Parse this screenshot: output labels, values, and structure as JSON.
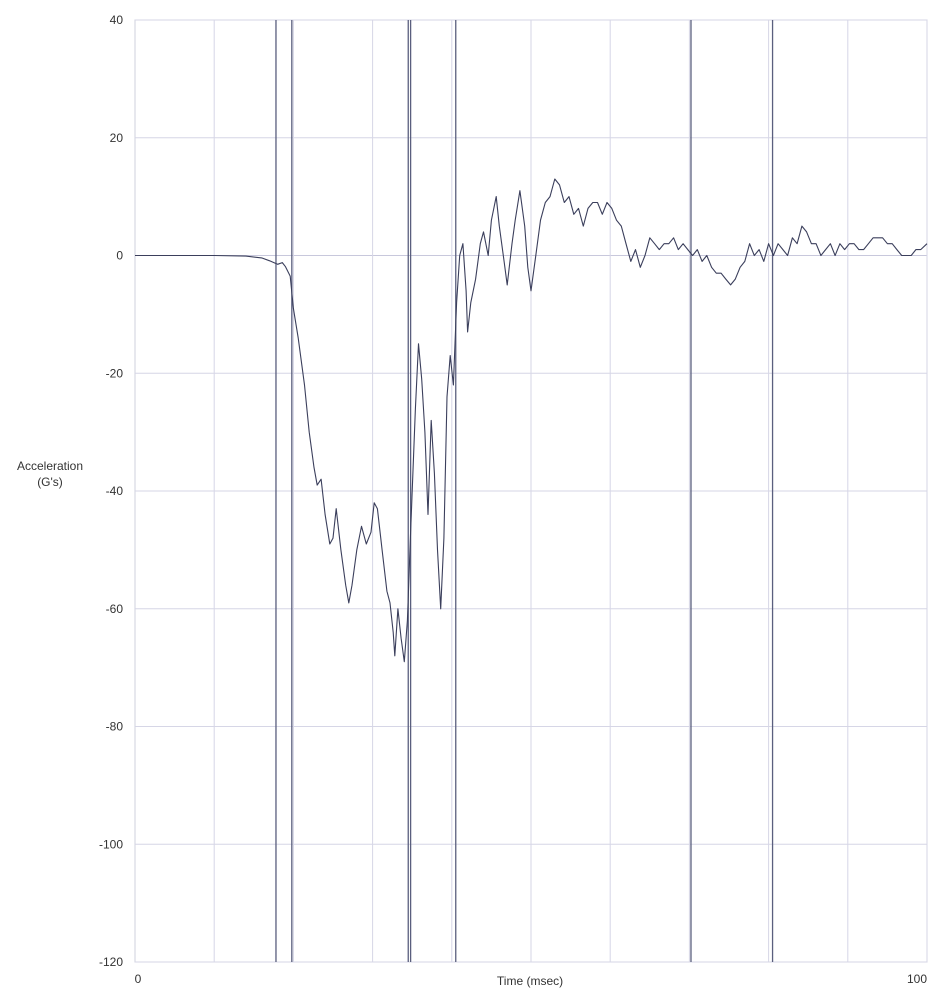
{
  "chart_data": {
    "type": "line",
    "title": "",
    "xlabel": "Time (msec)",
    "ylabel_lines": [
      "Acceleration",
      "(G's)"
    ],
    "xlim": [
      0,
      100
    ],
    "ylim": [
      -120,
      40
    ],
    "x_ticks_labeled": [
      "0",
      "100"
    ],
    "x_tick_values_labeled": [
      0,
      100
    ],
    "y_ticks": [
      40,
      20,
      0,
      -20,
      -40,
      -60,
      -80,
      -100,
      -120
    ],
    "y_tick_labels": [
      "40",
      "20",
      "0",
      "-20",
      "-40",
      "-60",
      "-80",
      "-100",
      "-120"
    ],
    "x_grid_values": [
      10,
      20,
      30,
      40,
      50,
      60,
      70,
      80,
      90,
      100
    ],
    "grid": true,
    "legend": "none",
    "vertical_markers_ms": [
      17.8,
      19.8,
      34.5,
      34.8,
      40.5,
      70.2,
      80.5
    ],
    "series": [
      {
        "color": "#3b3f5c",
        "points": [
          [
            0,
            0
          ],
          [
            10,
            0
          ],
          [
            14,
            -0.1
          ],
          [
            16,
            -0.4
          ],
          [
            17,
            -0.9
          ],
          [
            18,
            -1.5
          ],
          [
            18.6,
            -1.2
          ],
          [
            19,
            -1.9
          ],
          [
            19.6,
            -3.5
          ],
          [
            20,
            -9
          ],
          [
            20.6,
            -14
          ],
          [
            21.4,
            -22
          ],
          [
            22,
            -30
          ],
          [
            22.6,
            -36
          ],
          [
            23,
            -39
          ],
          [
            23.5,
            -38
          ],
          [
            24,
            -44
          ],
          [
            24.6,
            -49
          ],
          [
            25,
            -48
          ],
          [
            25.4,
            -43
          ],
          [
            26,
            -50
          ],
          [
            26.6,
            -56
          ],
          [
            27,
            -59
          ],
          [
            27.4,
            -56
          ],
          [
            28,
            -50
          ],
          [
            28.6,
            -46
          ],
          [
            29.2,
            -49
          ],
          [
            29.8,
            -47
          ],
          [
            30.2,
            -42
          ],
          [
            30.6,
            -43
          ],
          [
            31.2,
            -50
          ],
          [
            31.8,
            -57
          ],
          [
            32.2,
            -59
          ],
          [
            32.6,
            -64
          ],
          [
            32.8,
            -68
          ],
          [
            33.2,
            -60
          ],
          [
            33.6,
            -65
          ],
          [
            34,
            -69
          ],
          [
            34.4,
            -62
          ],
          [
            34.8,
            -47
          ],
          [
            35.4,
            -26
          ],
          [
            35.8,
            -15
          ],
          [
            36.2,
            -21
          ],
          [
            36.6,
            -30
          ],
          [
            37,
            -44
          ],
          [
            37.4,
            -28
          ],
          [
            37.8,
            -37
          ],
          [
            38.2,
            -50
          ],
          [
            38.6,
            -60
          ],
          [
            39,
            -48
          ],
          [
            39.4,
            -24
          ],
          [
            39.8,
            -17
          ],
          [
            40.2,
            -22
          ],
          [
            40.6,
            -8
          ],
          [
            41,
            0
          ],
          [
            41.4,
            2
          ],
          [
            41.8,
            -6
          ],
          [
            42,
            -13
          ],
          [
            42.4,
            -8
          ],
          [
            43,
            -4
          ],
          [
            43.6,
            2
          ],
          [
            44,
            4
          ],
          [
            44.6,
            0
          ],
          [
            45,
            6
          ],
          [
            45.6,
            10
          ],
          [
            46,
            5
          ],
          [
            46.6,
            -1
          ],
          [
            47,
            -5
          ],
          [
            47.6,
            2
          ],
          [
            48,
            6
          ],
          [
            48.6,
            11
          ],
          [
            49.2,
            5
          ],
          [
            49.6,
            -2
          ],
          [
            50,
            -6
          ],
          [
            50.6,
            0
          ],
          [
            51.2,
            6
          ],
          [
            51.8,
            9
          ],
          [
            52.4,
            10
          ],
          [
            53,
            13
          ],
          [
            53.6,
            12
          ],
          [
            54.2,
            9
          ],
          [
            54.8,
            10
          ],
          [
            55.4,
            7
          ],
          [
            56,
            8
          ],
          [
            56.6,
            5
          ],
          [
            57.2,
            8
          ],
          [
            57.8,
            9
          ],
          [
            58.4,
            9
          ],
          [
            59,
            7
          ],
          [
            59.6,
            9
          ],
          [
            60.2,
            8
          ],
          [
            60.8,
            6
          ],
          [
            61.4,
            5
          ],
          [
            62,
            2
          ],
          [
            62.6,
            -1
          ],
          [
            63.2,
            1
          ],
          [
            63.8,
            -2
          ],
          [
            64.4,
            0
          ],
          [
            65,
            3
          ],
          [
            65.6,
            2
          ],
          [
            66.2,
            1
          ],
          [
            66.8,
            2
          ],
          [
            67.4,
            2
          ],
          [
            68,
            3
          ],
          [
            68.6,
            1
          ],
          [
            69.2,
            2
          ],
          [
            69.8,
            1
          ],
          [
            70.4,
            0
          ],
          [
            71,
            1
          ],
          [
            71.6,
            -1
          ],
          [
            72.2,
            0
          ],
          [
            72.8,
            -2
          ],
          [
            73.4,
            -3
          ],
          [
            74,
            -3
          ],
          [
            74.6,
            -4
          ],
          [
            75.2,
            -5
          ],
          [
            75.8,
            -4
          ],
          [
            76.4,
            -2
          ],
          [
            77,
            -1
          ],
          [
            77.6,
            2
          ],
          [
            78.2,
            0
          ],
          [
            78.8,
            1
          ],
          [
            79.4,
            -1
          ],
          [
            80,
            2
          ],
          [
            80.6,
            0
          ],
          [
            81.2,
            2
          ],
          [
            81.8,
            1
          ],
          [
            82.4,
            0
          ],
          [
            83,
            3
          ],
          [
            83.6,
            2
          ],
          [
            84.2,
            5
          ],
          [
            84.8,
            4
          ],
          [
            85.4,
            2
          ],
          [
            86,
            2
          ],
          [
            86.6,
            0
          ],
          [
            87.2,
            1
          ],
          [
            87.8,
            2
          ],
          [
            88.4,
            0
          ],
          [
            89,
            2
          ],
          [
            89.6,
            1
          ],
          [
            90.2,
            2
          ],
          [
            90.8,
            2
          ],
          [
            91.4,
            1
          ],
          [
            92,
            1
          ],
          [
            92.6,
            2
          ],
          [
            93.2,
            3
          ],
          [
            93.8,
            3
          ],
          [
            94.4,
            3
          ],
          [
            95,
            2
          ],
          [
            95.6,
            2
          ],
          [
            96.2,
            1
          ],
          [
            96.8,
            0
          ],
          [
            97.4,
            0
          ],
          [
            98,
            0
          ],
          [
            98.6,
            1
          ],
          [
            99.2,
            1
          ],
          [
            100,
            2
          ]
        ]
      }
    ]
  }
}
